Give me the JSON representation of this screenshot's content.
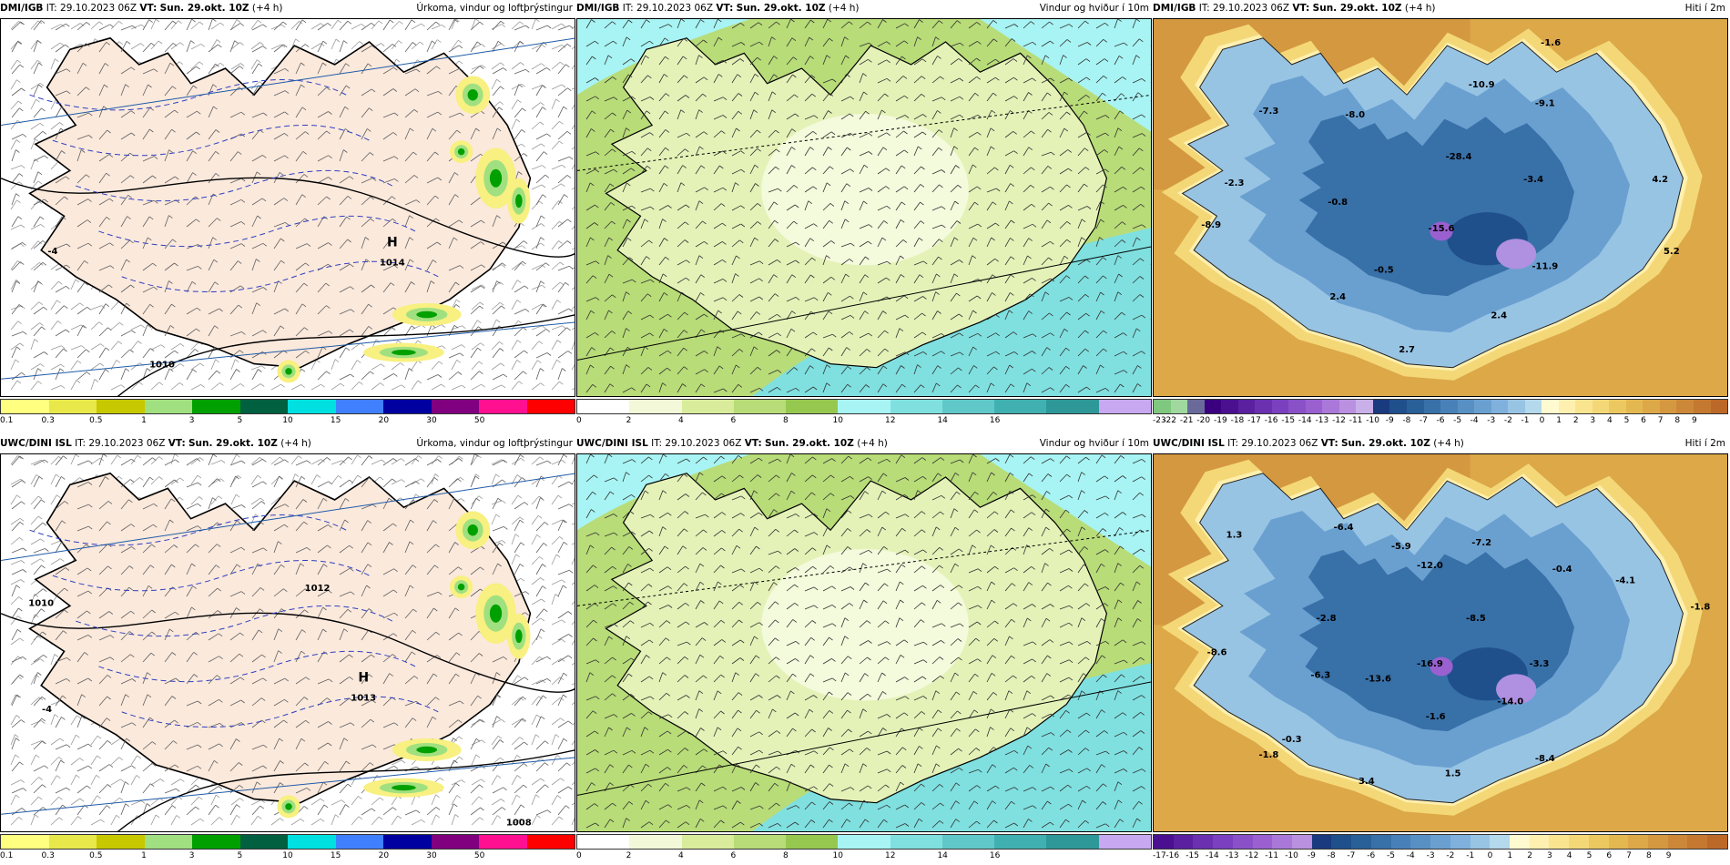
{
  "panels": [
    {
      "id": "top-left",
      "source": "DMI/IGB",
      "it_label": "IT:",
      "it_value": "29.10.2023 06Z",
      "vt_label": "VT:",
      "vt_value": "Sun. 29.okt. 10Z",
      "lead": "(+4 h)",
      "field": "Úrkoma, vindur og loftþrýstingur",
      "map_type": "precip",
      "annotations": [
        {
          "text": "H"
        },
        {
          "text": "1014"
        },
        {
          "text": "1010"
        },
        {
          "text": "-4"
        }
      ],
      "colorbar": {
        "colors": [
          "#ffff80",
          "#e8e84a",
          "#c8c800",
          "#a0e080",
          "#00a000",
          "#006040",
          "#00e0e0",
          "#4080ff",
          "#0000a0",
          "#800080",
          "#ff1090",
          "#ff0000"
        ],
        "ticks": [
          "0.1",
          "0.3",
          "0.5",
          "1",
          "3",
          "5",
          "10",
          "15",
          "20",
          "30",
          "50"
        ]
      }
    },
    {
      "id": "top-middle",
      "source": "DMI/IGB",
      "it_label": "IT:",
      "it_value": "29.10.2023 06Z",
      "vt_label": "VT:",
      "vt_value": "Sun. 29.okt. 10Z",
      "lead": "(+4 h)",
      "field": "Vindur og hviður í 10m",
      "map_type": "wind",
      "annotations": [],
      "colorbar": {
        "colors": [
          "#ffffff",
          "#f2f8d8",
          "#d8ec9c",
          "#b8dc78",
          "#96c850",
          "#a8f4f4",
          "#80e0e0",
          "#60c8c8",
          "#40b0b0",
          "#2e9898",
          "#c8a8f0"
        ],
        "ticks": [
          "0",
          "2",
          "4",
          "6",
          "8",
          "10",
          "12",
          "14",
          "16"
        ]
      }
    },
    {
      "id": "top-right",
      "source": "DMI/IGB",
      "it_label": "IT:",
      "it_value": "29.10.2023 06Z",
      "vt_label": "VT:",
      "vt_value": "Sun. 29.okt. 10Z",
      "lead": "(+4 h)",
      "field": "Hiti í 2m",
      "map_type": "temp",
      "annotations": [
        {
          "text": "-1.6"
        },
        {
          "text": "-7.3"
        },
        {
          "text": "-8.0"
        },
        {
          "text": "-9.1"
        },
        {
          "text": "-10.9"
        },
        {
          "text": "-28.4"
        },
        {
          "text": "-2.3"
        },
        {
          "text": "-0.8"
        },
        {
          "text": "-3.4"
        },
        {
          "text": "4.2"
        },
        {
          "text": "-8.9"
        },
        {
          "text": "-15.6"
        },
        {
          "text": "-0.5"
        },
        {
          "text": "-11.9"
        },
        {
          "text": "5.2"
        },
        {
          "text": "2.4"
        },
        {
          "text": "2.4"
        },
        {
          "text": "2.7"
        }
      ],
      "colorbar": {
        "colors": [
          "#80c880",
          "#a0d8a0",
          "#6a6a9a",
          "#3a0080",
          "#4a1090",
          "#5a20a0",
          "#6a30b0",
          "#7a40c0",
          "#8a50c8",
          "#9a60d0",
          "#aa78d8",
          "#ba90e0",
          "#cab0e8",
          "#1a3a80",
          "#20508c",
          "#2a6098",
          "#3870a8",
          "#4880b8",
          "#5890c4",
          "#6aa0d0",
          "#80b0dc",
          "#98c4e4",
          "#b4d8ec",
          "#fffad0",
          "#fff0b0",
          "#fae490",
          "#f4d878",
          "#ecc860",
          "#e4b850",
          "#dca848",
          "#d49840",
          "#cc8838",
          "#c47830",
          "#bc6828"
        ],
        "ticks": [
          "-23",
          "-22",
          "-21",
          "-20",
          "-19",
          "-18",
          "-17",
          "-16",
          "-15",
          "-14",
          "-13",
          "-12",
          "-11",
          "-10",
          "-9",
          "-8",
          "-7",
          "-6",
          "-5",
          "-4",
          "-3",
          "-2",
          "-1",
          "0",
          "1",
          "2",
          "3",
          "4",
          "5",
          "6",
          "7",
          "8",
          "9"
        ]
      }
    },
    {
      "id": "bottom-left",
      "source": "UWC/DINI ISL",
      "it_label": "IT:",
      "it_value": "29.10.2023 06Z",
      "vt_label": "VT:",
      "vt_value": "Sun. 29.okt. 10Z",
      "lead": "(+4 h)",
      "field": "Úrkoma, vindur og loftþrýstingur",
      "map_type": "precip",
      "annotations": [
        {
          "text": "H"
        },
        {
          "text": "1013"
        },
        {
          "text": "1010"
        },
        {
          "text": "1012"
        },
        {
          "text": "1008"
        },
        {
          "text": "-4"
        }
      ],
      "colorbar": {
        "colors": [
          "#ffff80",
          "#e8e84a",
          "#c8c800",
          "#a0e080",
          "#00a000",
          "#006040",
          "#00e0e0",
          "#4080ff",
          "#0000a0",
          "#800080",
          "#ff1090",
          "#ff0000"
        ],
        "ticks": [
          "0.1",
          "0.3",
          "0.5",
          "1",
          "3",
          "5",
          "10",
          "15",
          "20",
          "30",
          "50"
        ]
      }
    },
    {
      "id": "bottom-middle",
      "source": "UWC/DINI ISL",
      "it_label": "IT:",
      "it_value": "29.10.2023 06Z",
      "vt_label": "VT:",
      "vt_value": "Sun. 29.okt. 10Z",
      "lead": "(+4 h)",
      "field": "Vindur og hviður í 10m",
      "map_type": "wind",
      "annotations": [],
      "colorbar": {
        "colors": [
          "#ffffff",
          "#f2f8d8",
          "#d8ec9c",
          "#b8dc78",
          "#96c850",
          "#a8f4f4",
          "#80e0e0",
          "#60c8c8",
          "#40b0b0",
          "#2e9898",
          "#c8a8f0"
        ],
        "ticks": [
          "0",
          "2",
          "4",
          "6",
          "8",
          "10",
          "12",
          "14",
          "16"
        ]
      }
    },
    {
      "id": "bottom-right",
      "source": "UWC/DINI ISL",
      "it_label": "IT:",
      "it_value": "29.10.2023 06Z",
      "vt_label": "VT:",
      "vt_value": "Sun. 29.okt. 10Z",
      "lead": "(+4 h)",
      "field": "Hiti í 2m",
      "map_type": "temp",
      "annotations": [
        {
          "text": "1.3"
        },
        {
          "text": "-6.4"
        },
        {
          "text": "-5.9"
        },
        {
          "text": "-7.2"
        },
        {
          "text": "-12.0"
        },
        {
          "text": "-0.4"
        },
        {
          "text": "-4.1"
        },
        {
          "text": "-1.8"
        },
        {
          "text": "-2.8"
        },
        {
          "text": "-8.5"
        },
        {
          "text": "-8.6"
        },
        {
          "text": "-6.3"
        },
        {
          "text": "-13.6"
        },
        {
          "text": "-16.9"
        },
        {
          "text": "-3.3"
        },
        {
          "text": "-14.0"
        },
        {
          "text": "-1.6"
        },
        {
          "text": "-0.3"
        },
        {
          "text": "-8.4"
        },
        {
          "text": "-1.8"
        },
        {
          "text": "3.4"
        },
        {
          "text": "1.5"
        }
      ],
      "colorbar": {
        "colors": [
          "#4a1090",
          "#5a20a0",
          "#6a30b0",
          "#7a40c0",
          "#8a50c8",
          "#9a60d0",
          "#aa78d8",
          "#ba90e0",
          "#1a3a80",
          "#20508c",
          "#2a6098",
          "#3870a8",
          "#4880b8",
          "#5890c4",
          "#6aa0d0",
          "#80b0dc",
          "#98c4e4",
          "#b4d8ec",
          "#fffad0",
          "#fff0b0",
          "#fae490",
          "#f4d878",
          "#ecc860",
          "#e4b850",
          "#dca848",
          "#d49840",
          "#cc8838",
          "#c47830",
          "#bc6828"
        ],
        "ticks": [
          "-17",
          "-16",
          "-15",
          "-14",
          "-13",
          "-12",
          "-11",
          "-10",
          "-9",
          "-8",
          "-7",
          "-6",
          "-5",
          "-4",
          "-3",
          "-2",
          "-1",
          "0",
          "1",
          "2",
          "3",
          "4",
          "5",
          "6",
          "7",
          "8",
          "9"
        ]
      }
    }
  ]
}
